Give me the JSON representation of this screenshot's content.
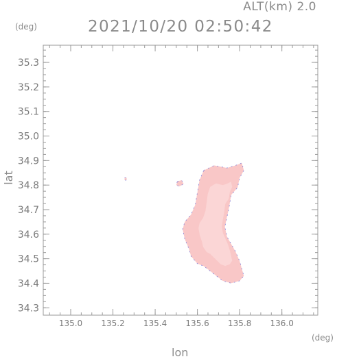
{
  "header": {
    "altitude_label": "ALT(km) 2.0",
    "timestamp": "2021/10/20 02:50:42"
  },
  "axes": {
    "y_unit": "(deg)",
    "x_unit": "(deg)",
    "y_title": "lat",
    "x_title": "lon"
  },
  "chart_data": {
    "type": "heatmap",
    "title": "2021/10/20 02:50:42",
    "xlabel": "lon",
    "ylabel": "lat",
    "xlim": [
      134.87,
      136.17
    ],
    "ylim": [
      34.27,
      35.37
    ],
    "x_ticks": [
      135.0,
      135.2,
      135.4,
      135.6,
      135.8,
      136.0
    ],
    "x_tick_labels": [
      "135.0",
      "135.2",
      "135.4",
      "135.6",
      "135.8",
      "136.0"
    ],
    "y_ticks": [
      34.3,
      34.4,
      34.5,
      34.6,
      34.7,
      34.8,
      34.9,
      35.0,
      35.1,
      35.2,
      35.3
    ],
    "y_tick_labels": [
      "34.3",
      "34.4",
      "34.5",
      "34.6",
      "34.7",
      "34.8",
      "34.9",
      "35.0",
      "35.1",
      "35.2",
      "35.3"
    ],
    "grid": false,
    "colors": {
      "echo_fill": "#f9c7c7",
      "echo_light": "#fbd6d6",
      "echo_edge": "#6b6bd6",
      "frame": "#9a9a9a"
    },
    "echo_regions": [
      {
        "name": "main-echo",
        "lonlat": [
          [
            135.63,
            34.86
          ],
          [
            135.68,
            34.88
          ],
          [
            135.74,
            34.87
          ],
          [
            135.78,
            34.88
          ],
          [
            135.81,
            34.89
          ],
          [
            135.82,
            34.86
          ],
          [
            135.8,
            34.83
          ],
          [
            135.79,
            34.79
          ],
          [
            135.76,
            34.76
          ],
          [
            135.75,
            34.71
          ],
          [
            135.74,
            34.67
          ],
          [
            135.73,
            34.63
          ],
          [
            135.74,
            34.59
          ],
          [
            135.76,
            34.56
          ],
          [
            135.78,
            34.53
          ],
          [
            135.8,
            34.49
          ],
          [
            135.81,
            34.46
          ],
          [
            135.82,
            34.43
          ],
          [
            135.8,
            34.41
          ],
          [
            135.76,
            34.4
          ],
          [
            135.72,
            34.41
          ],
          [
            135.69,
            34.43
          ],
          [
            135.66,
            34.45
          ],
          [
            135.63,
            34.47
          ],
          [
            135.6,
            34.48
          ],
          [
            135.57,
            34.51
          ],
          [
            135.56,
            34.54
          ],
          [
            135.54,
            34.58
          ],
          [
            135.53,
            34.62
          ],
          [
            135.54,
            34.65
          ],
          [
            135.57,
            34.68
          ],
          [
            135.59,
            34.72
          ],
          [
            135.6,
            34.77
          ],
          [
            135.61,
            34.82
          ]
        ]
      },
      {
        "name": "small-echo-west",
        "lonlat": [
          [
            135.505,
            34.815
          ],
          [
            135.525,
            34.82
          ],
          [
            135.535,
            34.805
          ],
          [
            135.515,
            34.795
          ],
          [
            135.5,
            34.8
          ]
        ]
      },
      {
        "name": "tiny-echo-far-west",
        "lonlat": [
          [
            135.255,
            34.83
          ],
          [
            135.265,
            34.83
          ],
          [
            135.265,
            34.82
          ],
          [
            135.255,
            34.82
          ]
        ]
      }
    ]
  }
}
